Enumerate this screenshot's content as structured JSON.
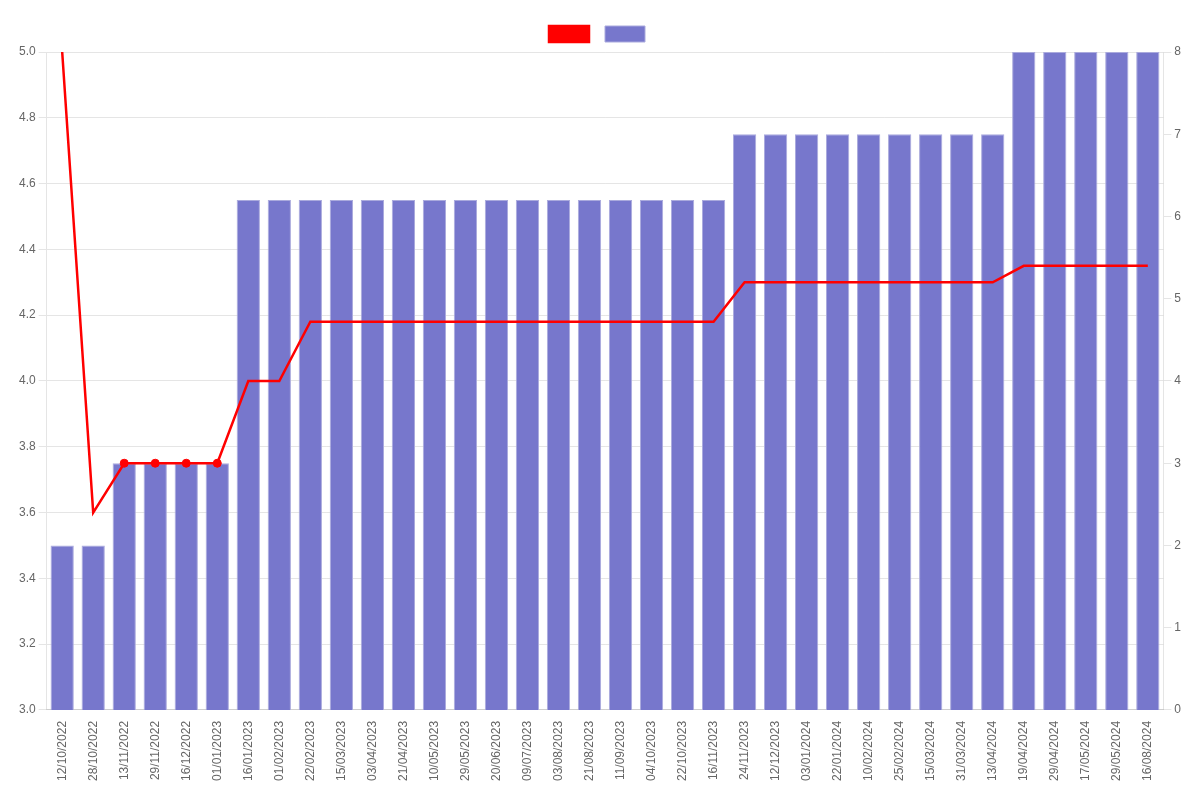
{
  "chart_data": {
    "type": "bar",
    "categories": [
      "12/10/2022",
      "28/10/2022",
      "13/11/2022",
      "29/11/2022",
      "16/12/2022",
      "01/01/2023",
      "16/01/2023",
      "01/02/2023",
      "22/02/2023",
      "15/03/2023",
      "03/04/2023",
      "21/04/2023",
      "10/05/2023",
      "29/05/2023",
      "20/06/2023",
      "09/07/2023",
      "03/08/2023",
      "21/08/2023",
      "11/09/2023",
      "04/10/2023",
      "22/10/2023",
      "16/11/2023",
      "24/11/2023",
      "12/12/2023",
      "03/01/2024",
      "22/01/2024",
      "10/02/2024",
      "25/02/2024",
      "15/03/2024",
      "31/03/2024",
      "13/04/2024",
      "19/04/2024",
      "29/04/2024",
      "17/05/2024",
      "29/05/2024",
      "16/08/2024"
    ],
    "series": [
      {
        "type": "line",
        "color": "#ff0000",
        "values": [
          5.0,
          3.6,
          3.75,
          3.75,
          3.75,
          3.75,
          4.0,
          4.0,
          4.18,
          4.18,
          4.18,
          4.18,
          4.18,
          4.18,
          4.18,
          4.18,
          4.18,
          4.18,
          4.18,
          4.18,
          4.18,
          4.18,
          4.3,
          4.3,
          4.3,
          4.3,
          4.3,
          4.3,
          4.3,
          4.3,
          4.3,
          4.35,
          4.35,
          4.35,
          4.35,
          4.35
        ]
      },
      {
        "type": "bar",
        "color": "#7777cc",
        "values": [
          3.5,
          3.5,
          3.75,
          3.75,
          3.75,
          3.75,
          4.55,
          4.55,
          4.55,
          4.55,
          4.55,
          4.55,
          4.55,
          4.55,
          4.55,
          4.55,
          4.55,
          4.55,
          4.55,
          4.55,
          4.55,
          4.55,
          4.75,
          4.75,
          4.75,
          4.75,
          4.75,
          4.75,
          4.75,
          4.75,
          4.75,
          5.0,
          5.0,
          5.0,
          5.0,
          5.0
        ]
      },
      {
        "type": "scatter",
        "color": "#ff0000",
        "marker": "circle",
        "values": [
          null,
          null,
          3.75,
          3.75,
          3.75,
          3.75,
          null,
          null,
          null,
          null,
          null,
          null,
          null,
          null,
          null,
          null,
          null,
          null,
          null,
          null,
          null,
          null,
          null,
          null,
          null,
          null,
          null,
          null,
          null,
          null,
          null,
          null,
          null,
          null,
          null,
          null
        ]
      }
    ],
    "ylim": [
      3.0,
      5.0
    ],
    "yticks": [
      {
        "value": 3.0,
        "label": "3.0"
      },
      3.2,
      3.4,
      3.6,
      3.8,
      {
        "value": 4.0,
        "label": "4.0"
      },
      4.2,
      4.4,
      4.6,
      4.8,
      {
        "value": 5.0,
        "label": "5.0"
      }
    ],
    "y2lim": [
      0,
      8
    ],
    "y2ticks": [
      0,
      1,
      2,
      3,
      4,
      5,
      6,
      7,
      8
    ],
    "grid": true,
    "legend": "top"
  }
}
